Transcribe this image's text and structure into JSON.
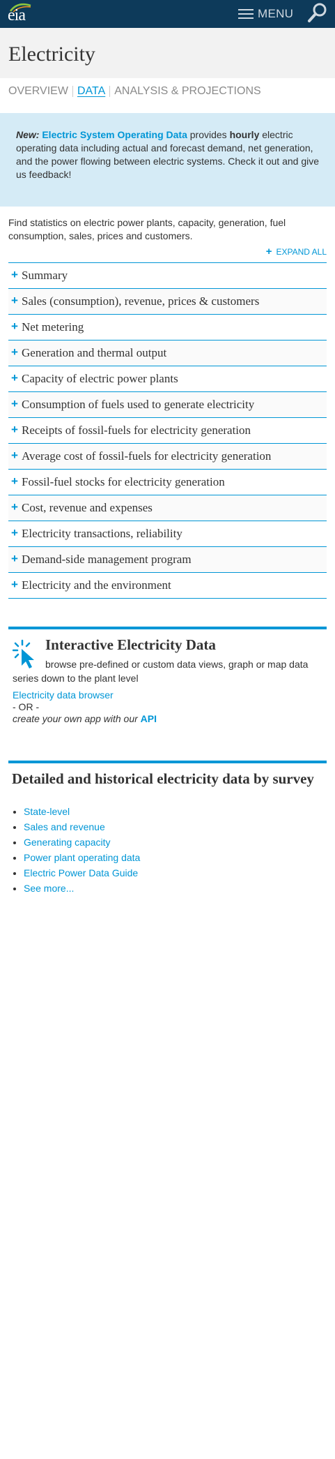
{
  "header": {
    "logo_text": "eia",
    "menu_label": "MENU"
  },
  "page": {
    "title": "Electricity"
  },
  "tabs": [
    {
      "label": "OVERVIEW"
    },
    {
      "label": "DATA"
    },
    {
      "label": "ANALYSIS & PROJECTIONS"
    }
  ],
  "news": {
    "new_label": "New:",
    "link_text": "Electric System Operating Data",
    "text_1": " provides ",
    "hourly": "hourly",
    "text_2": " electric operating data including actual and forecast demand, net generation, and the power flowing between electric systems. Check it out and give us feedback!"
  },
  "intro": "Find statistics on electric power plants, capacity, generation, fuel consumption, sales, prices and customers.",
  "expand_all": "EXPAND ALL",
  "accordion": [
    {
      "label": "Summary"
    },
    {
      "label": "Sales (consumption), revenue, prices & customers"
    },
    {
      "label": "Net metering"
    },
    {
      "label": "Generation and thermal output"
    },
    {
      "label": "Capacity of electric power plants"
    },
    {
      "label": "Consumption of fuels used to generate electricity"
    },
    {
      "label": "Receipts of fossil-fuels for electricity generation"
    },
    {
      "label": "Average cost of fossil-fuels for electricity generation"
    },
    {
      "label": "Fossil-fuel stocks for electricity generation"
    },
    {
      "label": "Cost, revenue and expenses"
    },
    {
      "label": "Electricity transactions, reliability"
    },
    {
      "label": "Demand-side management program"
    },
    {
      "label": "Electricity and the environment"
    }
  ],
  "interactive": {
    "title": "Interactive Electricity Data",
    "desc_1": "browse pre-defined or custom data views, graph or map data",
    "desc_2": "series down to the plant level",
    "browser_link": "Electricity data browser",
    "or": "- OR -",
    "api_text": "create your own app with our ",
    "api_link": "API"
  },
  "survey": {
    "title": "Detailed and historical electricity data by survey",
    "links": [
      {
        "label": "State-level"
      },
      {
        "label": "Sales and revenue"
      },
      {
        "label": "Generating capacity"
      },
      {
        "label": "Power plant operating data"
      },
      {
        "label": "Electric Power Data Guide"
      },
      {
        "label": "See more..."
      }
    ]
  }
}
